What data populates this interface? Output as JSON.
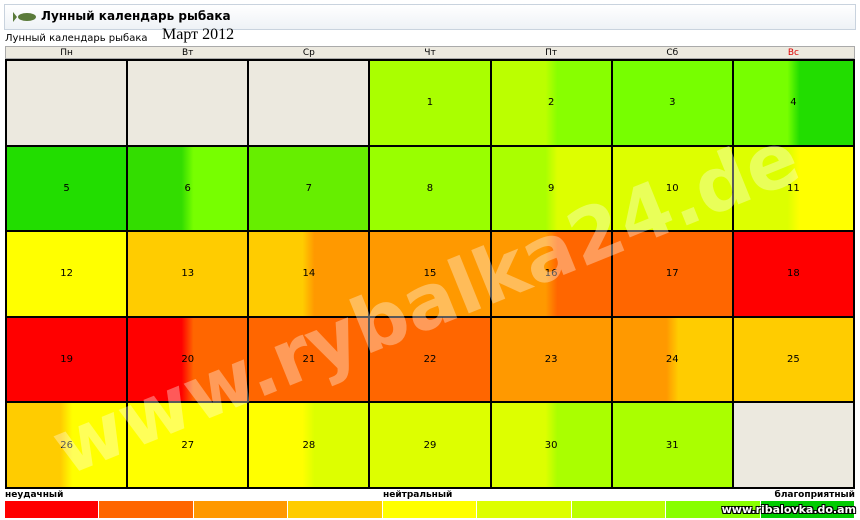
{
  "header": {
    "title": "Лунный календарь рыбака"
  },
  "subtitle": "Лунный календарь рыбака",
  "month": "Март 2012",
  "weekdays": [
    "Пн",
    "Вт",
    "Ср",
    "Чт",
    "Пт",
    "Сб",
    "Вс"
  ],
  "weeks": [
    [
      null,
      null,
      null,
      {
        "day": "1",
        "colors": [
          "#aaff00",
          "#aaff00"
        ]
      },
      {
        "day": "2",
        "colors": [
          "#bbff00",
          "#88ff00"
        ]
      },
      {
        "day": "3",
        "colors": [
          "#77ff00",
          "#77ff00"
        ]
      },
      {
        "day": "4",
        "colors": [
          "#77ff00",
          "#22dd00"
        ]
      }
    ],
    [
      {
        "day": "5",
        "colors": [
          "#22dd00",
          "#22dd00"
        ]
      },
      {
        "day": "6",
        "colors": [
          "#33dd00",
          "#77ff00"
        ]
      },
      {
        "day": "7",
        "colors": [
          "#66ee00",
          "#66ee00"
        ]
      },
      {
        "day": "8",
        "colors": [
          "#99ff00",
          "#99ff00"
        ]
      },
      {
        "day": "9",
        "colors": [
          "#aaff00",
          "#ddff00"
        ]
      },
      {
        "day": "10",
        "colors": [
          "#ddff00",
          "#ddff00"
        ]
      },
      {
        "day": "11",
        "colors": [
          "#ddff00",
          "#ffff00"
        ]
      }
    ],
    [
      {
        "day": "12",
        "colors": [
          "#ffff00",
          "#ffff00"
        ]
      },
      {
        "day": "13",
        "colors": [
          "#ffcc00",
          "#ffcc00"
        ]
      },
      {
        "day": "14",
        "colors": [
          "#ffcc00",
          "#ff9900"
        ]
      },
      {
        "day": "15",
        "colors": [
          "#ff9900",
          "#ff9900"
        ]
      },
      {
        "day": "16",
        "colors": [
          "#ff9900",
          "#ff6600"
        ]
      },
      {
        "day": "17",
        "colors": [
          "#ff6600",
          "#ff6600"
        ]
      },
      {
        "day": "18",
        "colors": [
          "#ff0000",
          "#ff0000"
        ]
      }
    ],
    [
      {
        "day": "19",
        "colors": [
          "#ff0000",
          "#ff0000"
        ]
      },
      {
        "day": "20",
        "colors": [
          "#ff0000",
          "#ff6600"
        ]
      },
      {
        "day": "21",
        "colors": [
          "#ff6600",
          "#ff6600"
        ]
      },
      {
        "day": "22",
        "colors": [
          "#ff6600",
          "#ff6600"
        ]
      },
      {
        "day": "23",
        "colors": [
          "#ff9900",
          "#ff9900"
        ]
      },
      {
        "day": "24",
        "colors": [
          "#ff9900",
          "#ffcc00"
        ]
      },
      {
        "day": "25",
        "colors": [
          "#ffcc00",
          "#ffcc00"
        ]
      }
    ],
    [
      {
        "day": "26",
        "colors": [
          "#ffcc00",
          "#ffff00"
        ]
      },
      {
        "day": "27",
        "colors": [
          "#ffff00",
          "#ffff00"
        ]
      },
      {
        "day": "28",
        "colors": [
          "#ffff00",
          "#ddff00"
        ]
      },
      {
        "day": "29",
        "colors": [
          "#ddff00",
          "#ddff00"
        ]
      },
      {
        "day": "30",
        "colors": [
          "#ddff00",
          "#aaff00"
        ]
      },
      {
        "day": "31",
        "colors": [
          "#aaff00",
          "#aaff00"
        ]
      },
      null
    ]
  ],
  "empty_color": "#ece9df",
  "legend": {
    "bad": "неудачный",
    "neutral": "нейтральный",
    "good": "благоприятный",
    "colors": [
      "#ff0000",
      "#ff6600",
      "#ff9900",
      "#ffcc00",
      "#ffff00",
      "#ddff00",
      "#bbff00",
      "#88ff00",
      "#00cc00"
    ]
  },
  "watermark": "www.rybalka24.de",
  "footer": "www.ribalovka.do.am"
}
